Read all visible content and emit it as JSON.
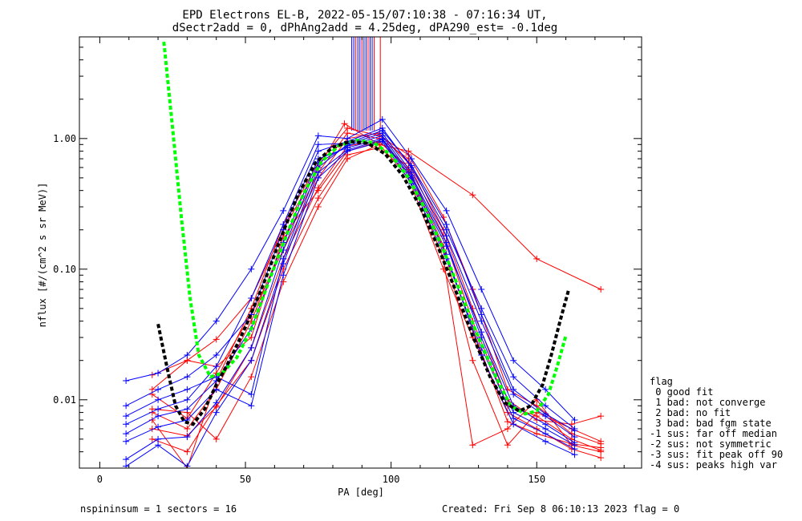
{
  "chart_data": {
    "type": "line",
    "title": "EPD Electrons EL-B, 2022-05-15/07:10:38 - 07:16:34 UT,",
    "subtitle": "dSectr2add = 0, dPhAng2add = 4.25deg, dPA290_est=  -0.1deg",
    "xlabel": "PA [deg]",
    "ylabel": "nflux [#/(cm^2 s sr MeV)]",
    "xlim": [
      -7,
      186
    ],
    "ylim": [
      0.003,
      6.0
    ],
    "yscale": "log",
    "x_ticks": [
      {
        "value": 0,
        "label": "0"
      },
      {
        "value": 50,
        "label": "50"
      },
      {
        "value": 100,
        "label": "100"
      },
      {
        "value": 150,
        "label": "150"
      }
    ],
    "y_ticks": [
      {
        "value": 0.01,
        "label": "0.01"
      },
      {
        "value": 0.1,
        "label": "0.10"
      },
      {
        "value": 1.0,
        "label": "1.00"
      }
    ],
    "series": [
      {
        "color": "#ff0000",
        "x": [
          18,
          30,
          40,
          52,
          63,
          75,
          84,
          96,
          106,
          128,
          150,
          172
        ],
        "y": [
          0.0155,
          0.02,
          0.029,
          0.06,
          0.2,
          0.6,
          1.3,
          0.9,
          0.8,
          0.37,
          0.12,
          0.07
        ]
      },
      {
        "color": "#ff0000",
        "x": [
          18,
          30,
          40,
          52,
          63,
          75,
          85,
          96,
          106,
          118,
          128,
          140,
          150,
          162,
          172
        ],
        "y": [
          0.012,
          0.02,
          0.018,
          0.03,
          0.18,
          0.4,
          0.8,
          0.95,
          0.6,
          0.15,
          0.02,
          0.0045,
          0.008,
          0.006,
          0.0048
        ]
      },
      {
        "color": "#ff0000",
        "x": [
          18,
          30,
          40,
          52,
          63,
          75,
          85,
          96,
          106,
          118,
          128,
          140,
          150,
          162,
          172
        ],
        "y": [
          0.008,
          0.006,
          0.012,
          0.04,
          0.16,
          0.55,
          1.1,
          1.0,
          0.7,
          0.2,
          0.05,
          0.01,
          0.007,
          0.0065,
          0.0075
        ]
      },
      {
        "color": "#ff0000",
        "x": [
          18,
          30,
          40,
          52,
          63,
          75,
          85,
          96,
          106,
          118,
          128,
          140,
          150,
          162,
          172
        ],
        "y": [
          0.005,
          0.004,
          0.009,
          0.02,
          0.1,
          0.35,
          0.75,
          0.85,
          0.55,
          0.12,
          0.0045,
          0.006,
          0.01,
          0.0045,
          0.004
        ]
      },
      {
        "color": "#ff0000",
        "x": [
          18,
          30,
          40,
          52,
          63,
          75,
          85,
          96,
          106,
          118,
          128,
          140,
          150,
          162,
          172
        ],
        "y": [
          0.007,
          0.003,
          0.014,
          0.05,
          0.22,
          0.65,
          1.2,
          1.05,
          0.75,
          0.25,
          0.07,
          0.012,
          0.009,
          0.0055,
          0.0046
        ]
      },
      {
        "color": "#ff0000",
        "x": [
          18,
          30,
          40,
          52,
          63,
          75,
          85,
          96,
          106,
          118,
          128,
          140,
          150,
          162,
          172
        ],
        "y": [
          0.0085,
          0.008,
          0.005,
          0.015,
          0.08,
          0.3,
          0.7,
          0.9,
          0.5,
          0.1,
          0.03,
          0.008,
          0.006,
          0.0042,
          0.0036
        ]
      },
      {
        "color": "#ff0000",
        "x": [
          18,
          30,
          40,
          52,
          63,
          75,
          85,
          96,
          106,
          118,
          128,
          140,
          150,
          162,
          172
        ],
        "y": [
          0.011,
          0.0072,
          0.016,
          0.045,
          0.14,
          0.5,
          1.0,
          1.1,
          0.65,
          0.18,
          0.04,
          0.009,
          0.0075,
          0.005,
          0.0041
        ]
      },
      {
        "color": "#ff0000",
        "x": [
          18,
          30,
          40,
          52,
          63,
          75,
          85,
          96,
          106,
          118,
          128,
          140,
          150,
          162,
          172
        ],
        "y": [
          0.006,
          0.0053,
          0.0088,
          0.025,
          0.12,
          0.42,
          0.88,
          0.95,
          0.58,
          0.14,
          0.035,
          0.0068,
          0.0055,
          0.0046,
          0.0043
        ]
      },
      {
        "color": "#0000ff",
        "x": [
          9,
          20,
          30,
          40,
          52,
          63,
          75,
          85,
          97,
          107,
          119,
          131,
          142,
          153,
          163
        ],
        "y": [
          0.014,
          0.016,
          0.022,
          0.04,
          0.1,
          0.28,
          1.05,
          1.0,
          1.4,
          0.7,
          0.28,
          0.07,
          0.02,
          0.012,
          0.007
        ]
      },
      {
        "color": "#0000ff",
        "x": [
          9,
          20,
          30,
          40,
          52,
          63,
          75,
          85,
          97,
          107,
          119,
          131,
          142,
          153,
          163
        ],
        "y": [
          0.009,
          0.012,
          0.015,
          0.022,
          0.045,
          0.2,
          0.8,
          0.95,
          1.2,
          0.6,
          0.2,
          0.05,
          0.015,
          0.009,
          0.006
        ]
      },
      {
        "color": "#0000ff",
        "x": [
          9,
          20,
          30,
          40,
          52,
          63,
          75,
          85,
          97,
          107,
          119,
          131,
          142,
          153,
          163
        ],
        "y": [
          0.0075,
          0.01,
          0.012,
          0.015,
          0.011,
          0.12,
          0.6,
          0.9,
          1.1,
          0.55,
          0.18,
          0.04,
          0.011,
          0.0075,
          0.0052
        ]
      },
      {
        "color": "#0000ff",
        "x": [
          9,
          20,
          30,
          40,
          52,
          63,
          75,
          85,
          97,
          107,
          119,
          131,
          142,
          153,
          163
        ],
        "y": [
          0.0055,
          0.0075,
          0.0085,
          0.014,
          0.035,
          0.16,
          0.7,
          0.85,
          1.0,
          0.5,
          0.15,
          0.033,
          0.009,
          0.0065,
          0.0047
        ]
      },
      {
        "color": "#0000ff",
        "x": [
          9,
          20,
          30,
          40,
          52,
          63,
          75,
          85,
          97,
          107,
          119,
          131,
          142,
          153,
          163
        ],
        "y": [
          0.0048,
          0.0062,
          0.007,
          0.012,
          0.009,
          0.09,
          0.5,
          0.8,
          0.95,
          0.45,
          0.12,
          0.025,
          0.0072,
          0.0055,
          0.0042
        ]
      },
      {
        "color": "#0000ff",
        "x": [
          9,
          20,
          30,
          40,
          52,
          63,
          75,
          85,
          97,
          107,
          119,
          131,
          142,
          153,
          163
        ],
        "y": [
          0.0035,
          0.005,
          0.0052,
          0.0095,
          0.025,
          0.14,
          0.65,
          0.88,
          1.05,
          0.52,
          0.16,
          0.03,
          0.008,
          0.006,
          0.0045
        ]
      },
      {
        "color": "#0000ff",
        "x": [
          9,
          20,
          30,
          40,
          52,
          63,
          75,
          85,
          97,
          107,
          119,
          131,
          142,
          153,
          163
        ],
        "y": [
          0.0065,
          0.0085,
          0.01,
          0.018,
          0.06,
          0.22,
          0.9,
          0.92,
          1.15,
          0.62,
          0.22,
          0.045,
          0.012,
          0.0078,
          0.0058
        ]
      },
      {
        "color": "#0000ff",
        "x": [
          9,
          20,
          30,
          40,
          52,
          63,
          75,
          85,
          97,
          107,
          119,
          131,
          142,
          153,
          163
        ],
        "y": [
          0.0031,
          0.0045,
          0.0031,
          0.008,
          0.02,
          0.11,
          0.55,
          0.82,
          0.98,
          0.48,
          0.13,
          0.022,
          0.0065,
          0.0048,
          0.0038
        ]
      }
    ],
    "fits": [
      {
        "color": "#00ff00",
        "x": [
          22,
          25,
          28,
          31,
          34,
          38,
          42,
          47,
          52,
          58,
          64,
          70,
          76,
          82,
          88,
          94,
          100,
          106,
          112,
          118,
          124,
          130,
          136,
          141,
          146,
          150,
          154,
          157,
          160
        ],
        "y": [
          5.5,
          1.2,
          0.25,
          0.06,
          0.022,
          0.015,
          0.016,
          0.021,
          0.035,
          0.08,
          0.18,
          0.38,
          0.66,
          0.88,
          0.97,
          0.93,
          0.75,
          0.5,
          0.28,
          0.14,
          0.065,
          0.03,
          0.015,
          0.009,
          0.0078,
          0.0082,
          0.011,
          0.018,
          0.031
        ]
      },
      {
        "color": "#000000",
        "x": [
          20,
          23,
          26,
          29,
          32,
          36,
          40,
          45,
          50,
          56,
          62,
          68,
          74,
          80,
          86,
          92,
          98,
          104,
          110,
          116,
          122,
          128,
          134,
          139,
          144,
          148,
          152,
          155,
          158,
          161
        ],
        "y": [
          0.038,
          0.018,
          0.009,
          0.0068,
          0.0065,
          0.0085,
          0.013,
          0.021,
          0.036,
          0.075,
          0.17,
          0.37,
          0.65,
          0.86,
          0.95,
          0.92,
          0.76,
          0.52,
          0.3,
          0.15,
          0.07,
          0.031,
          0.015,
          0.0095,
          0.0082,
          0.009,
          0.013,
          0.022,
          0.04,
          0.07
        ]
      }
    ],
    "legend": {
      "title": "flag",
      "entries": [
        " 0 good fit",
        " 1 bad: not converge",
        " 2 bad: no fit",
        " 3 bad: bad fgm state",
        "-1 sus: far off median",
        "-2 sus: not symmetric",
        "-3 sus: fit peak off 90",
        "-4 sus: peaks high var"
      ],
      "placement": "right"
    },
    "footer": {
      "left": "nspininsum =  1  sectors = 16",
      "right": "Created: Fri Sep  8 06:10:13 2023   flag = 0"
    },
    "grid": false
  }
}
